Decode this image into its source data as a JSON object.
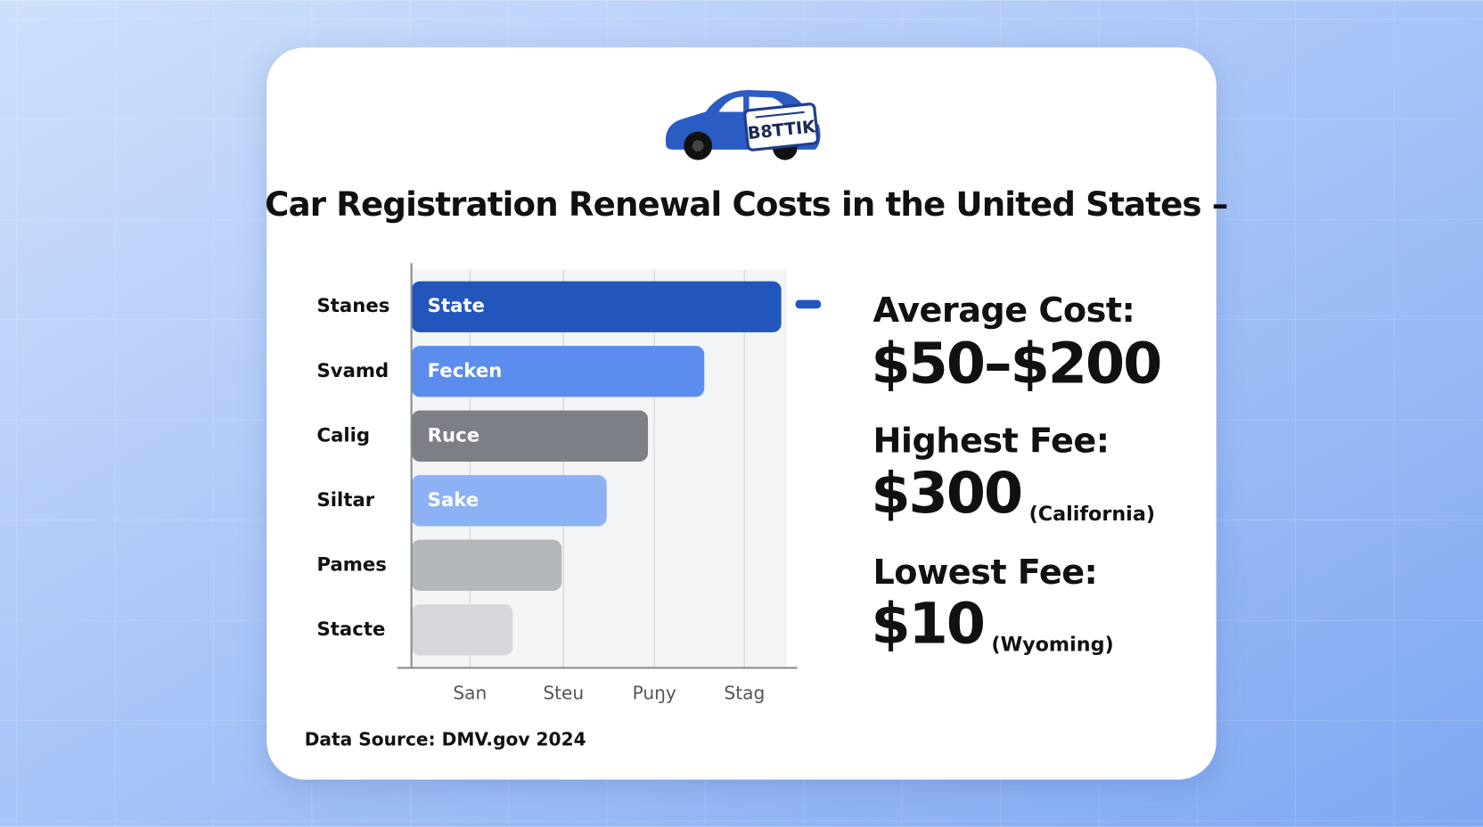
{
  "chart_data": {
    "type": "bar",
    "orientation": "horizontal",
    "title": "Car Registration Renewal Costs in the United States –",
    "categories": [
      "Stanes",
      "Svamd",
      "Calig",
      "Siltar",
      "Pames",
      "Stacte"
    ],
    "values": [
      98.5,
      78,
      63,
      52,
      40,
      27
    ],
    "bar_labels": [
      "State",
      "Fecken",
      "Ruce",
      "Sake",
      null,
      null
    ],
    "colors": [
      "#2256bd",
      "#5b8def",
      "#7c7f86",
      "#8cb1f4",
      "#b4b7bc",
      "#d5d7db"
    ],
    "xlim": [
      0,
      100
    ],
    "xticks": [
      {
        "value": 15.6,
        "label": "San"
      },
      {
        "value": 40.5,
        "label": "Steu"
      },
      {
        "value": 64.7,
        "label": "Puŋy"
      },
      {
        "value": 88.7,
        "label": "Stag"
      }
    ],
    "grid": true
  },
  "icon": {
    "plate": "B8TTIK"
  },
  "stats": [
    {
      "label": "Average Cost:",
      "value": "$50–$200",
      "note": null
    },
    {
      "label": "Highest Fee:",
      "value": "$300",
      "note": "(California)"
    },
    {
      "label": "Lowest Fee:",
      "value": "$10",
      "note": "(Wyoming)"
    }
  ],
  "source": "Data Source: DMV.gov 2024"
}
